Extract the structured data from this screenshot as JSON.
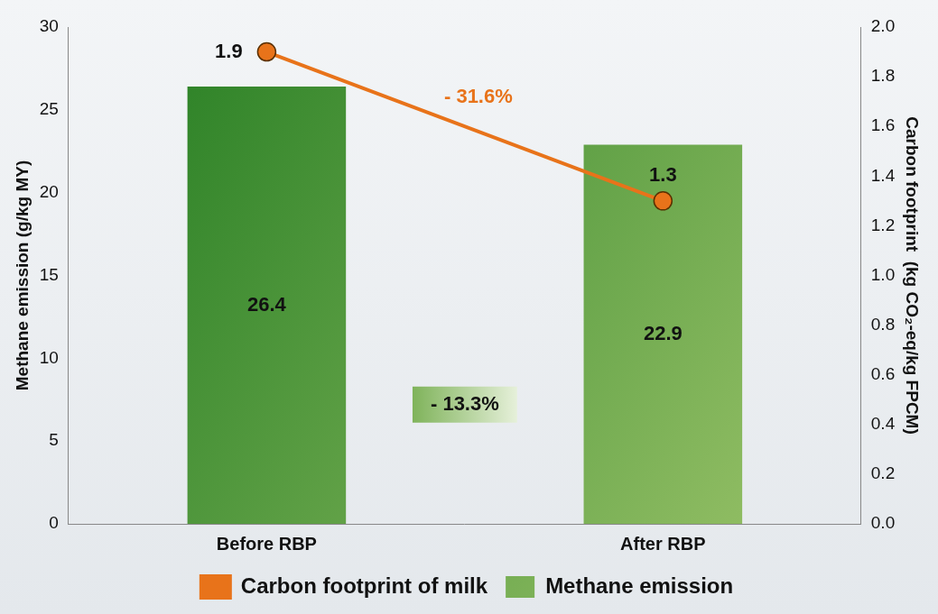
{
  "chart_data": {
    "type": "bar",
    "categories": [
      "Before RBP",
      "After RBP"
    ],
    "series": [
      {
        "name": "Methane emission",
        "type": "bar",
        "color": "#1f7a1f",
        "values": [
          26.4,
          22.9
        ]
      },
      {
        "name": "Carbon footprint of milk",
        "type": "line",
        "color": "#e8731a",
        "marker": "circle",
        "axis": "y2",
        "values": [
          1.9,
          1.3
        ]
      }
    ],
    "y_label": "Methane emission (g/kg MY)",
    "y2_label": "Carbon footprint  (kg CO₂-eq/kg FPCM)",
    "ylim": [
      0,
      30
    ],
    "yticks": [
      0,
      5,
      10,
      15,
      20,
      25,
      30
    ],
    "y2lim": [
      0,
      2
    ],
    "y2ticks": [
      {
        "value": 0,
        "label": "0.0"
      },
      0.2,
      0.4,
      0.6,
      0.8,
      {
        "value": 1,
        "label": "1.0"
      },
      1.2,
      1.4,
      1.6,
      1.8,
      {
        "value": 2,
        "label": "2.0"
      }
    ],
    "annotations": [
      "- 31.6%",
      "- 13.3%"
    ],
    "data_labels": true,
    "grid": false,
    "legend": "bottom"
  }
}
